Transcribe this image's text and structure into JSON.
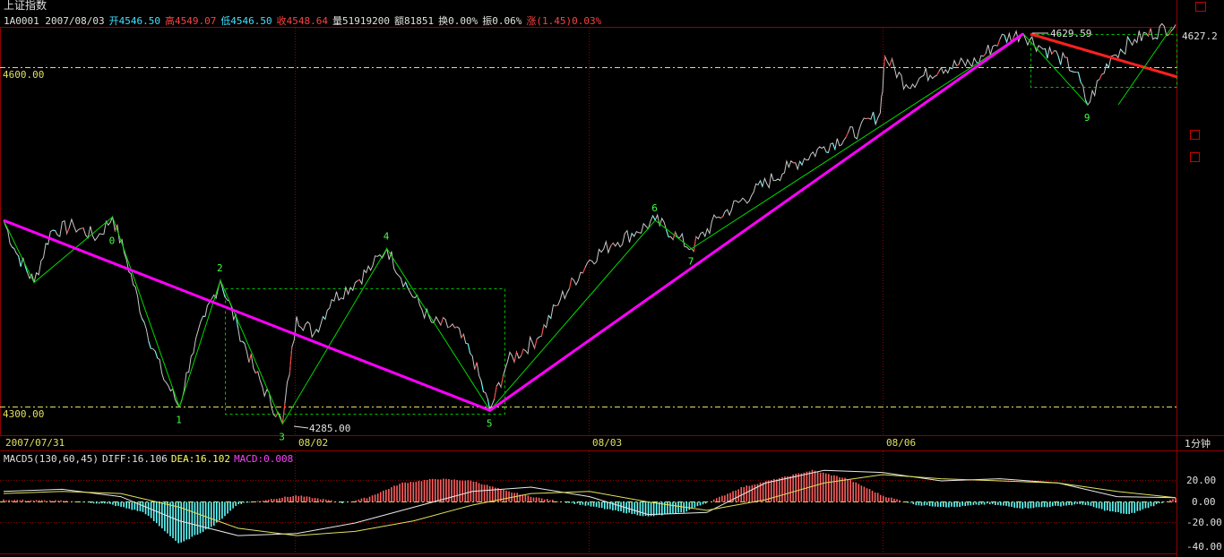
{
  "header": {
    "title": "上证指数",
    "code_date": "1A0001 2007/08/03",
    "open": "开4546.50",
    "high": "高4549.07",
    "low": "低4546.50",
    "close": "收4548.64",
    "volume": "量51919200",
    "amount": "额81851",
    "turnover": "换0.00%",
    "amplitude": "振0.06%",
    "change": "涨(1.45)0.03%",
    "current_price_label": "4627.2"
  },
  "macd": {
    "name": "MACD5(130,60,45)",
    "diff": "DIFF:16.106",
    "dea": "DEA:16.102",
    "macd": "MACD:0.008"
  },
  "time_unit": "1分钟",
  "colors": {
    "background": "#000000",
    "grid": "#800000",
    "price_line": "#c8c8c8",
    "wave_line": "#00e000",
    "trend_line": "#ff00ff",
    "resistance_line": "#ff2020",
    "dash_level": "#e0e060",
    "macd_pos": "#ff6060",
    "macd_neg": "#60ffff"
  },
  "chart_data": [
    {
      "type": "line",
      "title": "上证指数 1分钟",
      "x_labels": [
        "2007/07/31",
        "08/02",
        "08/03",
        "08/06"
      ],
      "y_labels": [
        "4600.00",
        "4300.00"
      ],
      "ylim": [
        4270,
        4650
      ],
      "price_annotations": [
        {
          "label": "4285.00",
          "value": 4285.0
        },
        {
          "label": "4629.59",
          "value": 4629.59
        }
      ],
      "wave_points": [
        {
          "label": "0",
          "index": 0.093,
          "value": 4468
        },
        {
          "label": "1",
          "index": 0.15,
          "value": 4300
        },
        {
          "label": "2",
          "index": 0.185,
          "value": 4412
        },
        {
          "label": "3",
          "index": 0.238,
          "value": 4285
        },
        {
          "label": "4",
          "index": 0.327,
          "value": 4440
        },
        {
          "label": "5",
          "index": 0.415,
          "value": 4297
        },
        {
          "label": "6",
          "index": 0.556,
          "value": 4465
        },
        {
          "label": "7",
          "index": 0.587,
          "value": 4440
        },
        {
          "label": "9",
          "index": 0.925,
          "value": 4567
        }
      ],
      "grid": true
    },
    {
      "type": "bar",
      "title": "MACD5(130,60,45)",
      "y_labels": [
        "20.00",
        "0.00",
        "-20.00",
        "-40.00"
      ],
      "ylim": [
        -42,
        32
      ],
      "series": [
        {
          "name": "DIFF",
          "value": 16.106
        },
        {
          "name": "DEA",
          "value": 16.102
        },
        {
          "name": "MACD",
          "value": 0.008
        }
      ]
    }
  ]
}
